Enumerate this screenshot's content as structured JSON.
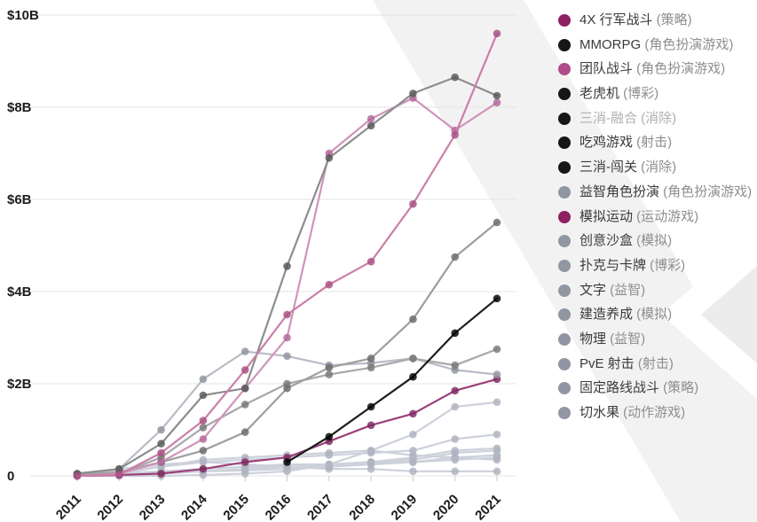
{
  "colors": {
    "background": "#ffffff",
    "gridline": "#e4e4e4",
    "axis_text": "#1c1c1c",
    "tick_mark": "#c9c9c9",
    "legend_text": "#3a3a3a",
    "legend_category_text": "#8e8e8e",
    "dimmed_text": "#aeaeae",
    "watermark": "#f2f2f2",
    "watermark_inner": "#ececec"
  },
  "chart_data": {
    "type": "line",
    "title": "",
    "xlabel": "",
    "ylabel": "",
    "x": [
      "2011",
      "2012",
      "2013",
      "2014",
      "2015",
      "2016",
      "2017",
      "2018",
      "2019",
      "2020",
      "2021"
    ],
    "y_axis": {
      "range_billions": [
        0,
        10
      ],
      "ticks": [
        {
          "label": "$10B",
          "value": 10
        },
        {
          "label": "$8B",
          "value": 8
        },
        {
          "label": "$6B",
          "value": 6
        },
        {
          "label": "$4B",
          "value": 4
        },
        {
          "label": "$2B",
          "value": 2
        },
        {
          "label": "0",
          "value": 0
        }
      ]
    },
    "grid": "horizontal",
    "legend_position": "right",
    "series": [
      {
        "id": "4x-march-battle",
        "name": "4X 行军战斗",
        "category": "(策略)",
        "dot_color": "#8e2063",
        "line_color": "#cb7fa8",
        "marker_color": "#a84e83",
        "dimmed": false,
        "values_billions": [
          0,
          0.03,
          0.5,
          1.2,
          2.3,
          3.5,
          4.15,
          4.65,
          5.9,
          7.4,
          9.6
        ]
      },
      {
        "id": "mmorpg",
        "name": "MMORPG",
        "category": "(角色扮演游戏)",
        "dot_color": "#161616",
        "line_color": "#8d8d8d",
        "marker_color": "#585858",
        "dimmed": false,
        "values_billions": [
          0.05,
          0.15,
          0.7,
          1.75,
          1.9,
          4.55,
          6.9,
          7.6,
          8.3,
          8.65,
          8.25
        ]
      },
      {
        "id": "team-battle",
        "name": "团队战斗",
        "category": "(角色扮演游戏)",
        "dot_color": "#b04c87",
        "line_color": "#d094ba",
        "marker_color": "#b2669a",
        "dimmed": false,
        "values_billions": [
          0,
          0.05,
          0.3,
          0.8,
          1.9,
          3.0,
          7.0,
          7.75,
          8.2,
          7.5,
          8.1
        ]
      },
      {
        "id": "slots",
        "name": "老虎机",
        "category": "(博彩)",
        "dot_color": "#161616",
        "line_color": "#9e9e9e",
        "marker_color": "#6a6a6a",
        "dimmed": false,
        "values_billions": [
          0.02,
          0.08,
          0.3,
          0.55,
          0.95,
          1.9,
          2.35,
          2.55,
          3.4,
          4.75,
          5.5
        ]
      },
      {
        "id": "match3-merge",
        "name": "三消-融合",
        "category": "(消除)",
        "dot_color": "#161616",
        "line_color": null,
        "marker_color": null,
        "dimmed": true,
        "values_billions": null
      },
      {
        "id": "battle-royale",
        "name": "吃鸡游戏",
        "category": "(射击)",
        "dot_color": "#161616",
        "line_color": "#1d1d1d",
        "marker_color": "#000000",
        "dimmed": false,
        "values_billions": [
          null,
          null,
          null,
          null,
          null,
          0.3,
          0.85,
          1.5,
          2.15,
          3.1,
          3.85
        ]
      },
      {
        "id": "match3-levels",
        "name": "三消-闯关",
        "category": "(消除)",
        "dot_color": "#161616",
        "line_color": "#a8a8a8",
        "marker_color": "#787878",
        "dimmed": false,
        "values_billions": [
          0,
          0.05,
          0.4,
          1.05,
          1.55,
          2.0,
          2.2,
          2.35,
          2.55,
          2.4,
          2.75
        ]
      },
      {
        "id": "puzzle-rpg",
        "name": "益智角色扮演",
        "category": "(角色扮演游戏)",
        "dot_color": "#9096a2",
        "line_color": "#b9bcc6",
        "marker_color": "#9094a0",
        "dimmed": false,
        "values_billions": [
          0.02,
          0.15,
          1.0,
          2.1,
          2.7,
          2.6,
          2.4,
          2.45,
          2.55,
          2.3,
          2.2
        ]
      },
      {
        "id": "sports-sim",
        "name": "模拟运动",
        "category": "(运动游戏)",
        "dot_color": "#8e2063",
        "line_color": "#9c4079",
        "marker_color": "#7d2a60",
        "dimmed": false,
        "values_billions": [
          0,
          0.02,
          0.05,
          0.15,
          0.3,
          0.4,
          0.75,
          1.1,
          1.35,
          1.85,
          2.1
        ]
      },
      {
        "id": "creative-sandbox",
        "name": "创意沙盒",
        "category": "(模拟)",
        "dot_color": "#9096a2",
        "line_color": "#cdd1db",
        "marker_color": "#aeb2bf",
        "dimmed": false,
        "values_billions": [
          0,
          0,
          0,
          0.02,
          0.05,
          0.1,
          0.25,
          0.55,
          0.9,
          1.5,
          1.6
        ]
      },
      {
        "id": "poker-cards",
        "name": "扑克与卡牌",
        "category": "(博彩)",
        "dot_color": "#9096a2",
        "line_color": "#cdd1db",
        "marker_color": "#aeb2bf",
        "dimmed": false,
        "values_billions": [
          0.05,
          0.1,
          0.2,
          0.3,
          0.35,
          0.4,
          0.45,
          0.5,
          0.55,
          0.8,
          0.9
        ]
      },
      {
        "id": "word",
        "name": "文字",
        "category": "(益智)",
        "dot_color": "#9096a2",
        "line_color": "#cdd1db",
        "marker_color": "#aeb2bf",
        "dimmed": false,
        "values_billions": [
          0,
          0.02,
          0.05,
          0.1,
          0.12,
          0.15,
          0.2,
          0.3,
          0.4,
          0.55,
          0.6
        ]
      },
      {
        "id": "build-sim",
        "name": "建造养成",
        "category": "(模拟)",
        "dot_color": "#9096a2",
        "line_color": "#cdd1db",
        "marker_color": "#aeb2bf",
        "dimmed": false,
        "values_billions": [
          0,
          0.02,
          0.05,
          0.1,
          0.15,
          0.2,
          0.25,
          0.3,
          0.35,
          0.5,
          0.55
        ]
      },
      {
        "id": "physics",
        "name": "物理",
        "category": "(益智)",
        "dot_color": "#9096a2",
        "line_color": "#cdd1db",
        "marker_color": "#aeb2bf",
        "dimmed": false,
        "values_billions": [
          0.02,
          0.05,
          0.1,
          0.15,
          0.2,
          0.2,
          0.2,
          0.25,
          0.3,
          0.4,
          0.45
        ]
      },
      {
        "id": "pve-shooter",
        "name": "PvE 射击",
        "category": "(射击)",
        "dot_color": "#9096a2",
        "line_color": "#cdd1db",
        "marker_color": "#aeb2bf",
        "dimmed": false,
        "values_billions": [
          0.02,
          0.05,
          0.1,
          0.15,
          0.2,
          0.25,
          0.25,
          0.3,
          0.3,
          0.35,
          0.4
        ]
      },
      {
        "id": "fixed-path-battle",
        "name": "固定路线战斗",
        "category": "(策略)",
        "dot_color": "#9096a2",
        "line_color": "#cdd1db",
        "marker_color": "#aeb2bf",
        "dimmed": false,
        "values_billions": [
          0,
          0.05,
          0.2,
          0.35,
          0.4,
          0.45,
          0.5,
          0.55,
          0.45,
          0.4,
          0.35
        ]
      },
      {
        "id": "fruit-slice",
        "name": "切水果",
        "category": "(动作游戏)",
        "dot_color": "#9096a2",
        "line_color": "#cdd1db",
        "marker_color": "#aeb2bf",
        "dimmed": false,
        "values_billions": [
          0.05,
          0.15,
          0.25,
          0.3,
          0.25,
          0.2,
          0.15,
          0.15,
          0.1,
          0.1,
          0.1
        ]
      }
    ]
  }
}
